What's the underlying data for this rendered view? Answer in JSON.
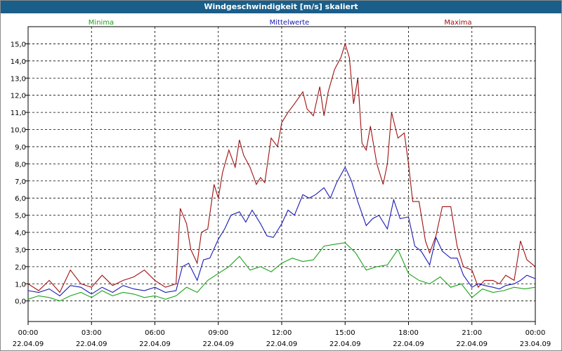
{
  "window": {
    "title": "Windgeschwindigkeit [m/s] skaliert"
  },
  "legend": [
    {
      "name": "Minima",
      "color": "#1aa31a"
    },
    {
      "name": "Mittelwerte",
      "color": "#1a1ab4"
    },
    {
      "name": "Maxima",
      "color": "#a01010"
    }
  ],
  "chart_data": {
    "type": "line",
    "title": "Windgeschwindigkeit [m/s] skaliert",
    "xlabel": "",
    "ylabel": "",
    "ylim": [
      -1.2,
      16.0
    ],
    "xlim": [
      0,
      24
    ],
    "grid": true,
    "legend_position": "top",
    "y_ticks": [
      "0,0",
      "1,0",
      "2,0",
      "3,0",
      "4,0",
      "5,0",
      "6,0",
      "7,0",
      "8,0",
      "9,0",
      "10,0",
      "11,0",
      "12,0",
      "13,0",
      "14,0",
      "15,0"
    ],
    "x_ticks": [
      {
        "time": "00:00",
        "date": "22.04.09"
      },
      {
        "time": "03:00",
        "date": "22.04.09"
      },
      {
        "time": "06:00",
        "date": "22.04.09"
      },
      {
        "time": "09:00",
        "date": "22.04.09"
      },
      {
        "time": "12:00",
        "date": "22.04.09"
      },
      {
        "time": "15:00",
        "date": "22.04.09"
      },
      {
        "time": "18:00",
        "date": "22.04.09"
      },
      {
        "time": "21:00",
        "date": "22.04.09"
      },
      {
        "time": "00:00",
        "date": "23.04.09"
      }
    ],
    "series": [
      {
        "name": "Maxima",
        "color": "#a01010",
        "x": [
          0,
          0.5,
          1,
          1.5,
          2,
          2.5,
          3,
          3.5,
          4,
          4.5,
          5,
          5.5,
          6,
          6.5,
          7,
          7.2,
          7.5,
          7.7,
          8,
          8.2,
          8.5,
          8.8,
          9,
          9.2,
          9.5,
          9.8,
          10,
          10.2,
          10.5,
          10.8,
          11,
          11.2,
          11.5,
          11.8,
          12,
          12.3,
          12.6,
          13,
          13.2,
          13.5,
          13.8,
          14,
          14.2,
          14.5,
          14.8,
          15,
          15.2,
          15.4,
          15.6,
          15.8,
          16,
          16.2,
          16.5,
          16.8,
          17,
          17.2,
          17.5,
          17.8,
          18,
          18.2,
          18.5,
          18.8,
          19,
          19.3,
          19.6,
          20,
          20.3,
          20.6,
          21,
          21.3,
          21.6,
          22,
          22.3,
          22.6,
          23,
          23.3,
          23.6,
          24
        ],
        "values": [
          1.0,
          0.6,
          1.2,
          0.5,
          1.8,
          1.0,
          0.8,
          1.5,
          0.9,
          1.2,
          1.4,
          1.8,
          1.2,
          0.8,
          1.0,
          5.4,
          4.5,
          3.0,
          2.2,
          4.0,
          4.2,
          6.8,
          6.0,
          7.5,
          8.8,
          7.8,
          9.4,
          8.5,
          7.8,
          6.8,
          7.2,
          6.9,
          9.5,
          9.0,
          10.4,
          11.0,
          11.5,
          12.2,
          11.2,
          10.8,
          12.5,
          10.8,
          12.2,
          13.5,
          14.2,
          15.0,
          14.2,
          11.5,
          13.0,
          9.2,
          8.8,
          10.2,
          8.0,
          6.8,
          8.0,
          11.0,
          9.5,
          9.8,
          8.0,
          5.8,
          5.8,
          3.5,
          2.8,
          3.8,
          5.5,
          5.5,
          3.2,
          2.0,
          1.8,
          0.8,
          1.2,
          1.2,
          1.0,
          1.5,
          1.2,
          3.5,
          2.4,
          2.0
        ]
      },
      {
        "name": "Mittelwerte",
        "color": "#1a1ab4",
        "x": [
          0,
          0.5,
          1,
          1.5,
          2,
          2.5,
          3,
          3.5,
          4,
          4.5,
          5,
          5.5,
          6,
          6.5,
          7,
          7.3,
          7.6,
          8,
          8.3,
          8.6,
          9,
          9.3,
          9.6,
          10,
          10.3,
          10.6,
          11,
          11.3,
          11.6,
          12,
          12.3,
          12.6,
          13,
          13.3,
          13.6,
          14,
          14.3,
          14.6,
          15,
          15.3,
          15.6,
          16,
          16.3,
          16.6,
          17,
          17.3,
          17.6,
          18,
          18.3,
          18.6,
          19,
          19.3,
          19.6,
          20,
          20.3,
          20.6,
          21,
          21.3,
          21.6,
          22,
          22.3,
          22.6,
          23,
          23.3,
          23.6,
          24
        ],
        "values": [
          0.6,
          0.5,
          0.7,
          0.3,
          0.9,
          0.8,
          0.4,
          0.8,
          0.5,
          0.9,
          0.7,
          0.6,
          0.8,
          0.5,
          0.6,
          2.0,
          2.2,
          1.2,
          2.4,
          2.5,
          3.6,
          4.2,
          5.0,
          5.2,
          4.6,
          5.3,
          4.5,
          3.8,
          3.7,
          4.5,
          5.3,
          5.0,
          6.2,
          6.0,
          6.2,
          6.6,
          6.0,
          6.9,
          7.8,
          7.0,
          5.8,
          4.4,
          4.8,
          5.0,
          4.2,
          5.9,
          4.8,
          4.9,
          3.2,
          2.9,
          2.1,
          3.7,
          2.9,
          2.5,
          2.5,
          1.5,
          0.8,
          1.0,
          0.9,
          0.8,
          0.7,
          0.9,
          1.0,
          1.2,
          1.5,
          1.3
        ]
      },
      {
        "name": "Minima",
        "color": "#1aa31a",
        "x": [
          0,
          0.5,
          1,
          1.5,
          2,
          2.5,
          3,
          3.5,
          4,
          4.5,
          5,
          5.5,
          6,
          6.5,
          7,
          7.5,
          8,
          8.5,
          9,
          9.5,
          10,
          10.5,
          11,
          11.5,
          12,
          12.5,
          13,
          13.5,
          14,
          14.5,
          15,
          15.5,
          16,
          16.5,
          17,
          17.5,
          18,
          18.5,
          19,
          19.5,
          20,
          20.5,
          21,
          21.5,
          22,
          22.5,
          23,
          23.5,
          24
        ],
        "values": [
          0.1,
          0.3,
          0.2,
          0.0,
          0.3,
          0.5,
          0.2,
          0.6,
          0.3,
          0.5,
          0.4,
          0.2,
          0.3,
          0.1,
          0.3,
          0.8,
          0.5,
          1.2,
          1.6,
          2.0,
          2.6,
          1.8,
          2.0,
          1.7,
          2.2,
          2.5,
          2.3,
          2.4,
          3.2,
          3.3,
          3.4,
          2.8,
          1.8,
          2.0,
          2.1,
          3.0,
          1.6,
          1.2,
          1.0,
          1.4,
          0.8,
          1.0,
          0.2,
          0.7,
          0.5,
          0.6,
          0.8,
          0.7,
          0.8
        ]
      }
    ]
  }
}
